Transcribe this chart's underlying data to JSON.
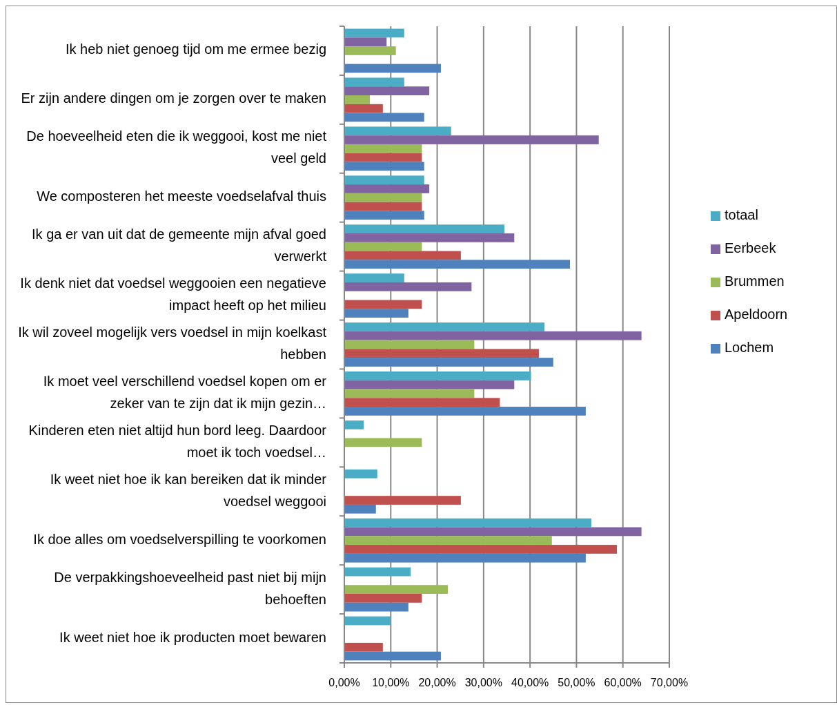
{
  "chart_data": {
    "type": "bar",
    "orientation": "horizontal",
    "categories": [
      "Ik heb niet genoeg tijd om me ermee bezig",
      "Er zijn andere dingen om je zorgen over te maken",
      "De hoeveelheid eten die ik weggooi, kost me niet veel geld",
      "We composteren het meeste voedselafval thuis",
      "Ik ga er van uit dat de gemeente mijn afval goed verwerkt",
      "Ik denk niet dat voedsel weggooien een negatieve impact heeft op het milieu",
      "Ik wil zoveel mogelijk vers voedsel in mijn koelkast hebben",
      "Ik moet veel verschillend voedsel kopen om er zeker van te zijn dat ik mijn gezin…",
      "Kinderen eten niet altijd hun bord leeg. Daardoor moet ik toch voedsel…",
      "Ik weet niet hoe ik kan bereiken dat ik minder voedsel weggooi",
      "Ik doe alles om voedselverspilling te voorkomen",
      "De verpakkingshoeveelheid past niet bij mijn behoeften",
      "Ik weet niet hoe ik producten moet bewaren"
    ],
    "series": [
      {
        "name": "totaal",
        "color": "#4bacc6",
        "values": [
          12.9,
          12.9,
          23.0,
          17.2,
          34.5,
          12.9,
          43.1,
          40.2,
          4.2,
          7.1,
          53.2,
          14.3,
          10.0
        ]
      },
      {
        "name": "Eerbeek",
        "color": "#8064a2",
        "values": [
          9.1,
          18.3,
          54.8,
          18.3,
          36.6,
          27.4,
          64.0,
          36.6,
          null,
          null,
          64.0,
          null,
          null
        ]
      },
      {
        "name": "Brummen",
        "color": "#9bbb59",
        "values": [
          11.1,
          5.5,
          16.7,
          16.7,
          16.7,
          null,
          28.0,
          28.0,
          16.7,
          null,
          44.7,
          22.3,
          null
        ]
      },
      {
        "name": "Apeldoorn",
        "color": "#c0504d",
        "values": [
          null,
          8.3,
          16.7,
          16.7,
          25.1,
          16.7,
          41.9,
          33.5,
          null,
          25.1,
          58.7,
          16.7,
          8.3
        ]
      },
      {
        "name": "Lochem",
        "color": "#4f81bd",
        "values": [
          20.8,
          17.2,
          17.2,
          17.2,
          48.6,
          13.8,
          45.0,
          52.0,
          null,
          6.8,
          52.0,
          13.8,
          20.8
        ]
      }
    ],
    "xlim": [
      0,
      70
    ],
    "xticks": [
      {
        "value": 0,
        "label": "0,00%"
      },
      {
        "value": 10,
        "label": "10,00%"
      },
      {
        "value": 20,
        "label": "20,00%"
      },
      {
        "value": 30,
        "label": "30,00%"
      },
      {
        "value": 40,
        "label": "40,00%"
      },
      {
        "value": 50,
        "label": "50,00%"
      },
      {
        "value": 60,
        "label": "60,00%"
      },
      {
        "value": 70,
        "label": "70,00%"
      }
    ],
    "grid": "x",
    "legend": "right"
  }
}
